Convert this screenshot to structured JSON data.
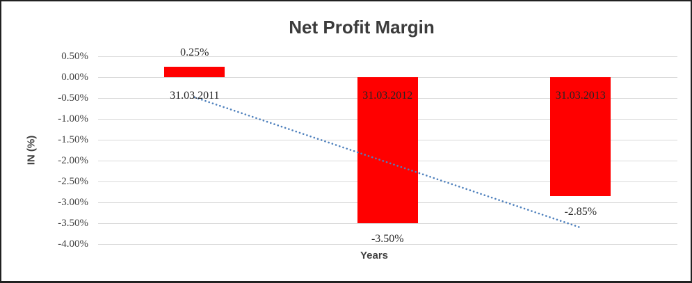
{
  "chart_data": {
    "type": "bar",
    "title": "Net Profit Margin",
    "xlabel": "Years",
    "ylabel": "IN (%)",
    "categories": [
      "31.03.2011",
      "31.03.2012",
      "31.03.2013"
    ],
    "series": [
      {
        "name": "Net Profit Margin",
        "values": [
          0.25,
          -3.5,
          -2.85
        ],
        "data_labels": [
          "0.25%",
          "-3.50%",
          "-2.85%"
        ],
        "color": "#FF0000"
      }
    ],
    "y_ticks": [
      {
        "label": "0.50%",
        "value": 0.5
      },
      {
        "label": "0.00%",
        "value": 0.0
      },
      {
        "label": "-0.50%",
        "value": -0.5
      },
      {
        "label": "-1.00%",
        "value": -1.0
      },
      {
        "label": "-1.50%",
        "value": -1.5
      },
      {
        "label": "-2.00%",
        "value": -2.0
      },
      {
        "label": "-2.50%",
        "value": -2.5
      },
      {
        "label": "-3.00%",
        "value": -3.0
      },
      {
        "label": "-3.50%",
        "value": -3.5
      },
      {
        "label": "-4.00%",
        "value": -4.0
      }
    ],
    "ylim": [
      -4.0,
      0.5
    ],
    "grid": true,
    "legend": "none",
    "trendline": {
      "type": "linear",
      "style": "dotted",
      "color": "#4F81BD",
      "start_category": "31.03.2011",
      "end_category": "31.03.2013",
      "start_value": -0.48,
      "end_value": -3.6
    }
  }
}
